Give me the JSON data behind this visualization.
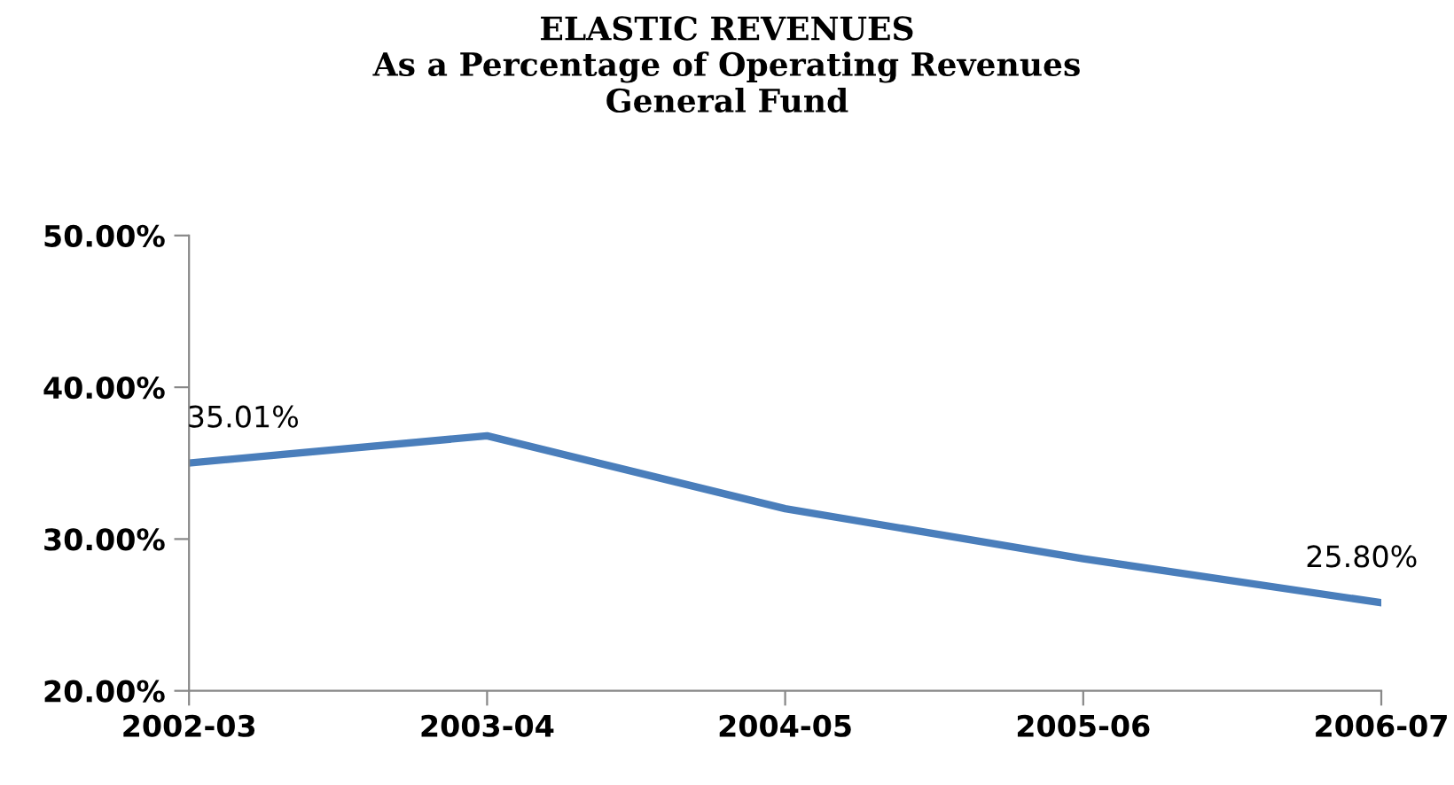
{
  "chart_data": {
    "type": "line",
    "title": "ELASTIC REVENUES\nAs a Percentage of Operating Revenues\nGeneral Fund",
    "categories": [
      "2002-03",
      "2003-04",
      "2004-05",
      "2005-06",
      "2006-07"
    ],
    "series": [
      {
        "color": "#4a7ebb",
        "values": [
          35.01,
          36.8,
          32.0,
          28.7,
          25.8
        ],
        "value_labels": [
          "35.01%",
          null,
          null,
          null,
          "25.80%"
        ]
      }
    ],
    "ylim": [
      20,
      50
    ],
    "yticks": [
      {
        "value": 20,
        "label": "20.00%"
      },
      {
        "value": 30,
        "label": "30.00%"
      },
      {
        "value": 40,
        "label": "40.00%"
      },
      {
        "value": 50,
        "label": "50.00%"
      }
    ],
    "grid": false,
    "legend": false,
    "marker": "none",
    "line_style": "solid"
  }
}
